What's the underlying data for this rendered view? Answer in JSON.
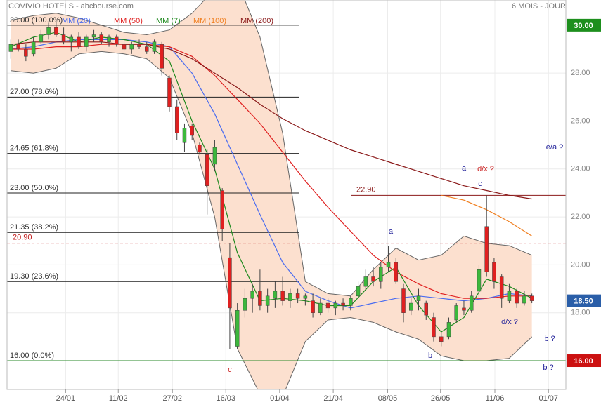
{
  "chart_data": {
    "type": "candlestick",
    "title": "COVIVIO HOTELS - abcbourse.com",
    "subtitle": "6 MOIS - JOUR",
    "xlim": [
      -0.5,
      73.5
    ],
    "ylim": [
      14.8,
      31.05
    ],
    "xticks": [
      {
        "value": 7.26,
        "label": "24/01"
      },
      {
        "value": 14.23,
        "label": "11/02"
      },
      {
        "value": 21.4,
        "label": "27/02"
      },
      {
        "value": 28.47,
        "label": "16/03"
      },
      {
        "value": 35.6,
        "label": "01/04"
      },
      {
        "value": 42.7,
        "label": "21/04"
      },
      {
        "value": 49.9,
        "label": "08/05"
      },
      {
        "value": 56.9,
        "label": "26/05"
      },
      {
        "value": 64.1,
        "label": "11/06"
      },
      {
        "value": 71.2,
        "label": "01/07"
      }
    ],
    "yticks": [
      {
        "value": 18,
        "label": "18.00"
      },
      {
        "value": 20,
        "label": "20.00"
      },
      {
        "value": 22,
        "label": "22.00"
      },
      {
        "value": 24,
        "label": "24.00"
      },
      {
        "value": 26,
        "label": "26.00"
      },
      {
        "value": 28,
        "label": "28.00"
      }
    ],
    "grid": true,
    "up_color": "#3cb83c",
    "down_color": "#e02020",
    "candles": {
      "open": [
        28.9,
        29.2,
        29.0,
        28.8,
        29.3,
        29.6,
        29.9,
        29.6,
        29.3,
        29.5,
        29.1,
        29.5,
        29.6,
        29.3,
        29.5,
        29.2,
        29.0,
        29.2,
        29.1,
        28.9,
        29.2,
        27.8,
        26.6,
        25.1,
        25.8,
        25.0,
        24.6,
        24.2,
        23.1,
        20.3,
        16.6,
        18.1,
        18.6,
        18.9,
        18.3,
        18.6,
        18.9,
        18.5,
        18.8,
        18.6,
        18.5,
        18.0,
        18.4,
        18.2,
        18.4,
        18.3,
        18.7,
        19.1,
        19.5,
        19.3,
        19.9,
        20.1,
        19.0,
        18.1,
        18.5,
        18.4,
        17.8,
        17.0,
        17.0,
        17.7,
        18.2,
        18.1,
        18.9,
        21.6,
        20.1,
        19.5,
        18.5,
        18.9,
        18.4,
        18.7
      ],
      "high": [
        29.4,
        29.4,
        29.2,
        29.5,
        29.8,
        30.1,
        30.2,
        29.9,
        29.6,
        29.7,
        29.6,
        29.8,
        29.7,
        29.6,
        29.6,
        29.4,
        29.3,
        29.4,
        29.3,
        29.4,
        29.3,
        27.9,
        26.9,
        25.9,
        25.9,
        25.1,
        24.8,
        25.2,
        23.2,
        20.9,
        18.4,
        19.0,
        19.2,
        19.8,
        19.0,
        19.3,
        19.5,
        19.0,
        19.0,
        18.8,
        18.8,
        18.6,
        18.6,
        18.5,
        18.6,
        18.7,
        19.3,
        19.8,
        19.9,
        20.1,
        20.8,
        20.3,
        19.2,
        18.6,
        19.0,
        18.5,
        18.0,
        17.2,
        17.8,
        18.4,
        18.5,
        18.9,
        20.0,
        22.9,
        20.3,
        19.6,
        19.2,
        19.0,
        18.9,
        18.8
      ],
      "low": [
        28.6,
        28.9,
        28.5,
        28.7,
        29.2,
        29.4,
        29.5,
        29.2,
        28.9,
        29.0,
        28.9,
        29.3,
        29.2,
        29.1,
        29.1,
        28.9,
        28.8,
        29.0,
        28.8,
        28.8,
        27.9,
        26.4,
        25.2,
        24.7,
        25.2,
        24.6,
        22.1,
        23.9,
        21.0,
        16.5,
        16.5,
        17.8,
        18.0,
        18.1,
        18.0,
        18.2,
        18.3,
        18.2,
        18.4,
        18.3,
        17.8,
        17.9,
        18.0,
        17.9,
        18.1,
        18.1,
        18.6,
        18.9,
        19.1,
        19.0,
        19.7,
        19.2,
        17.6,
        17.9,
        18.1,
        17.7,
        16.8,
        16.6,
        16.9,
        17.6,
        17.9,
        18.0,
        18.6,
        19.5,
        19.0,
        18.2,
        18.4,
        18.2,
        18.3,
        18.4
      ],
      "close": [
        29.2,
        29.0,
        28.7,
        29.3,
        29.6,
        29.9,
        29.6,
        29.3,
        29.5,
        29.1,
        29.5,
        29.6,
        29.3,
        29.5,
        29.2,
        29.0,
        29.2,
        29.1,
        28.9,
        29.3,
        28.2,
        26.6,
        25.5,
        25.7,
        25.4,
        24.7,
        23.3,
        24.9,
        21.5,
        18.2,
        18.1,
        18.6,
        18.9,
        18.3,
        18.7,
        18.9,
        18.5,
        18.8,
        18.6,
        18.7,
        18.0,
        18.4,
        18.2,
        18.4,
        18.3,
        18.6,
        19.1,
        19.5,
        19.3,
        19.9,
        20.1,
        19.3,
        18.0,
        18.4,
        18.7,
        17.9,
        17.0,
        16.8,
        17.6,
        18.3,
        18.1,
        18.7,
        19.8,
        19.7,
        19.3,
        18.6,
        18.9,
        18.4,
        18.7,
        18.5
      ]
    },
    "line_x": [
      0,
      3,
      6,
      9,
      12,
      15,
      18,
      21,
      24,
      27,
      30,
      33,
      36,
      39,
      42,
      45,
      48,
      51,
      54,
      57,
      60,
      63,
      66,
      69
    ],
    "bands": {
      "color": "#666666",
      "fill": "#fce0cf",
      "upper": [
        30.2,
        30.4,
        30.5,
        30.3,
        30.0,
        29.7,
        29.6,
        29.8,
        30.5,
        31.5,
        31.8,
        29.5,
        25.5,
        19.3,
        18.8,
        18.7,
        19.8,
        20.7,
        20.2,
        20.4,
        21.2,
        20.9,
        20.8,
        20.4
      ],
      "lower": [
        28.1,
        28.0,
        28.2,
        28.8,
        28.9,
        28.8,
        28.6,
        27.8,
        25.5,
        22.0,
        16.5,
        14.6,
        14.5,
        16.8,
        17.7,
        17.8,
        17.6,
        17.2,
        16.9,
        16.2,
        16.0,
        16.0,
        16.1,
        17.0
      ]
    },
    "lines": [
      {
        "name": "MM (20)",
        "color": "#4a6cf0",
        "values": [
          29.0,
          29.1,
          29.3,
          29.4,
          29.4,
          29.4,
          29.3,
          29.1,
          28.0,
          26.3,
          24.2,
          22.1,
          20.1,
          18.9,
          18.5,
          18.2,
          18.4,
          18.6,
          18.7,
          18.6,
          18.5,
          18.6,
          18.8,
          18.7
        ]
      },
      {
        "name": "MM (50)",
        "color": "#e02020",
        "values": [
          29.0,
          29.0,
          29.1,
          29.1,
          29.2,
          29.2,
          29.2,
          29.1,
          28.7,
          27.9,
          26.9,
          25.9,
          24.7,
          23.5,
          22.4,
          21.4,
          20.4,
          19.7,
          19.2,
          18.8,
          18.6,
          18.6,
          18.7,
          18.7
        ]
      },
      {
        "name": "MM (7)",
        "color": "#1f8a1f",
        "values": [
          29.1,
          29.5,
          29.7,
          29.3,
          29.5,
          29.4,
          29.2,
          28.5,
          26.0,
          24.0,
          20.5,
          18.5,
          18.6,
          18.5,
          18.3,
          18.3,
          19.3,
          19.9,
          18.3,
          17.2,
          17.8,
          19.4,
          19.1,
          18.6
        ]
      },
      {
        "name": "MM (100)",
        "color": "#f07f20",
        "values": [
          null,
          null,
          null,
          null,
          null,
          null,
          null,
          null,
          null,
          null,
          null,
          null,
          null,
          null,
          null,
          null,
          null,
          null,
          null,
          22.9,
          22.7,
          22.3,
          21.8,
          21.2
        ]
      },
      {
        "name": "MM (200)",
        "color": "#8b1a1a",
        "values": [
          29.2,
          29.3,
          29.3,
          29.3,
          29.3,
          29.2,
          29.2,
          29.0,
          28.6,
          28.0,
          27.4,
          26.7,
          26.1,
          25.6,
          25.2,
          24.8,
          24.5,
          24.2,
          23.9,
          23.6,
          23.3,
          23.1,
          22.9,
          22.75
        ]
      }
    ],
    "fibonacci": [
      {
        "value": 30,
        "label": "30.00 (100.0%)"
      },
      {
        "value": 27,
        "label": "27.00 (78.6%)"
      },
      {
        "value": 24.65,
        "label": "24.65 (61.8%)"
      },
      {
        "value": 23,
        "label": "23.00 (50.0%)"
      },
      {
        "value": 21.35,
        "label": "21.35 (38.2%)"
      },
      {
        "value": 19.3,
        "label": "19.30 (23.6%)"
      },
      {
        "value": 16,
        "label": "16.00 (0.0%)"
      }
    ],
    "levels": [
      {
        "value": 20.9,
        "label": "20.90",
        "color": "#c01a1a"
      },
      {
        "value": 22.9,
        "label": "22.90",
        "color": "#8b1a1a"
      },
      {
        "value": 16,
        "color": "#2a8a2a"
      }
    ],
    "price_boxes": [
      {
        "value": 30,
        "label": "30.00",
        "color": "#1d8f1d"
      },
      {
        "value": 18.5,
        "label": "18.50",
        "color": "#2a5ea8"
      },
      {
        "value": 16,
        "label": "16.00",
        "color": "#cc1111"
      }
    ],
    "annotations": [
      {
        "text": "a",
        "color": "#22229a"
      },
      {
        "text": "a",
        "color": "#22229a"
      },
      {
        "text": "d/x ?",
        "color": "#cc2222"
      },
      {
        "text": "c",
        "color": "#22229a"
      },
      {
        "text": "e/a ?",
        "color": "#22229a"
      },
      {
        "text": "c",
        "color": "#cc2222"
      },
      {
        "text": "b",
        "color": "#22229a"
      },
      {
        "text": "d/x ?",
        "color": "#22229a"
      },
      {
        "text": "b ?",
        "color": "#22229a"
      },
      {
        "text": "b ?",
        "color": "#22229a"
      }
    ]
  }
}
